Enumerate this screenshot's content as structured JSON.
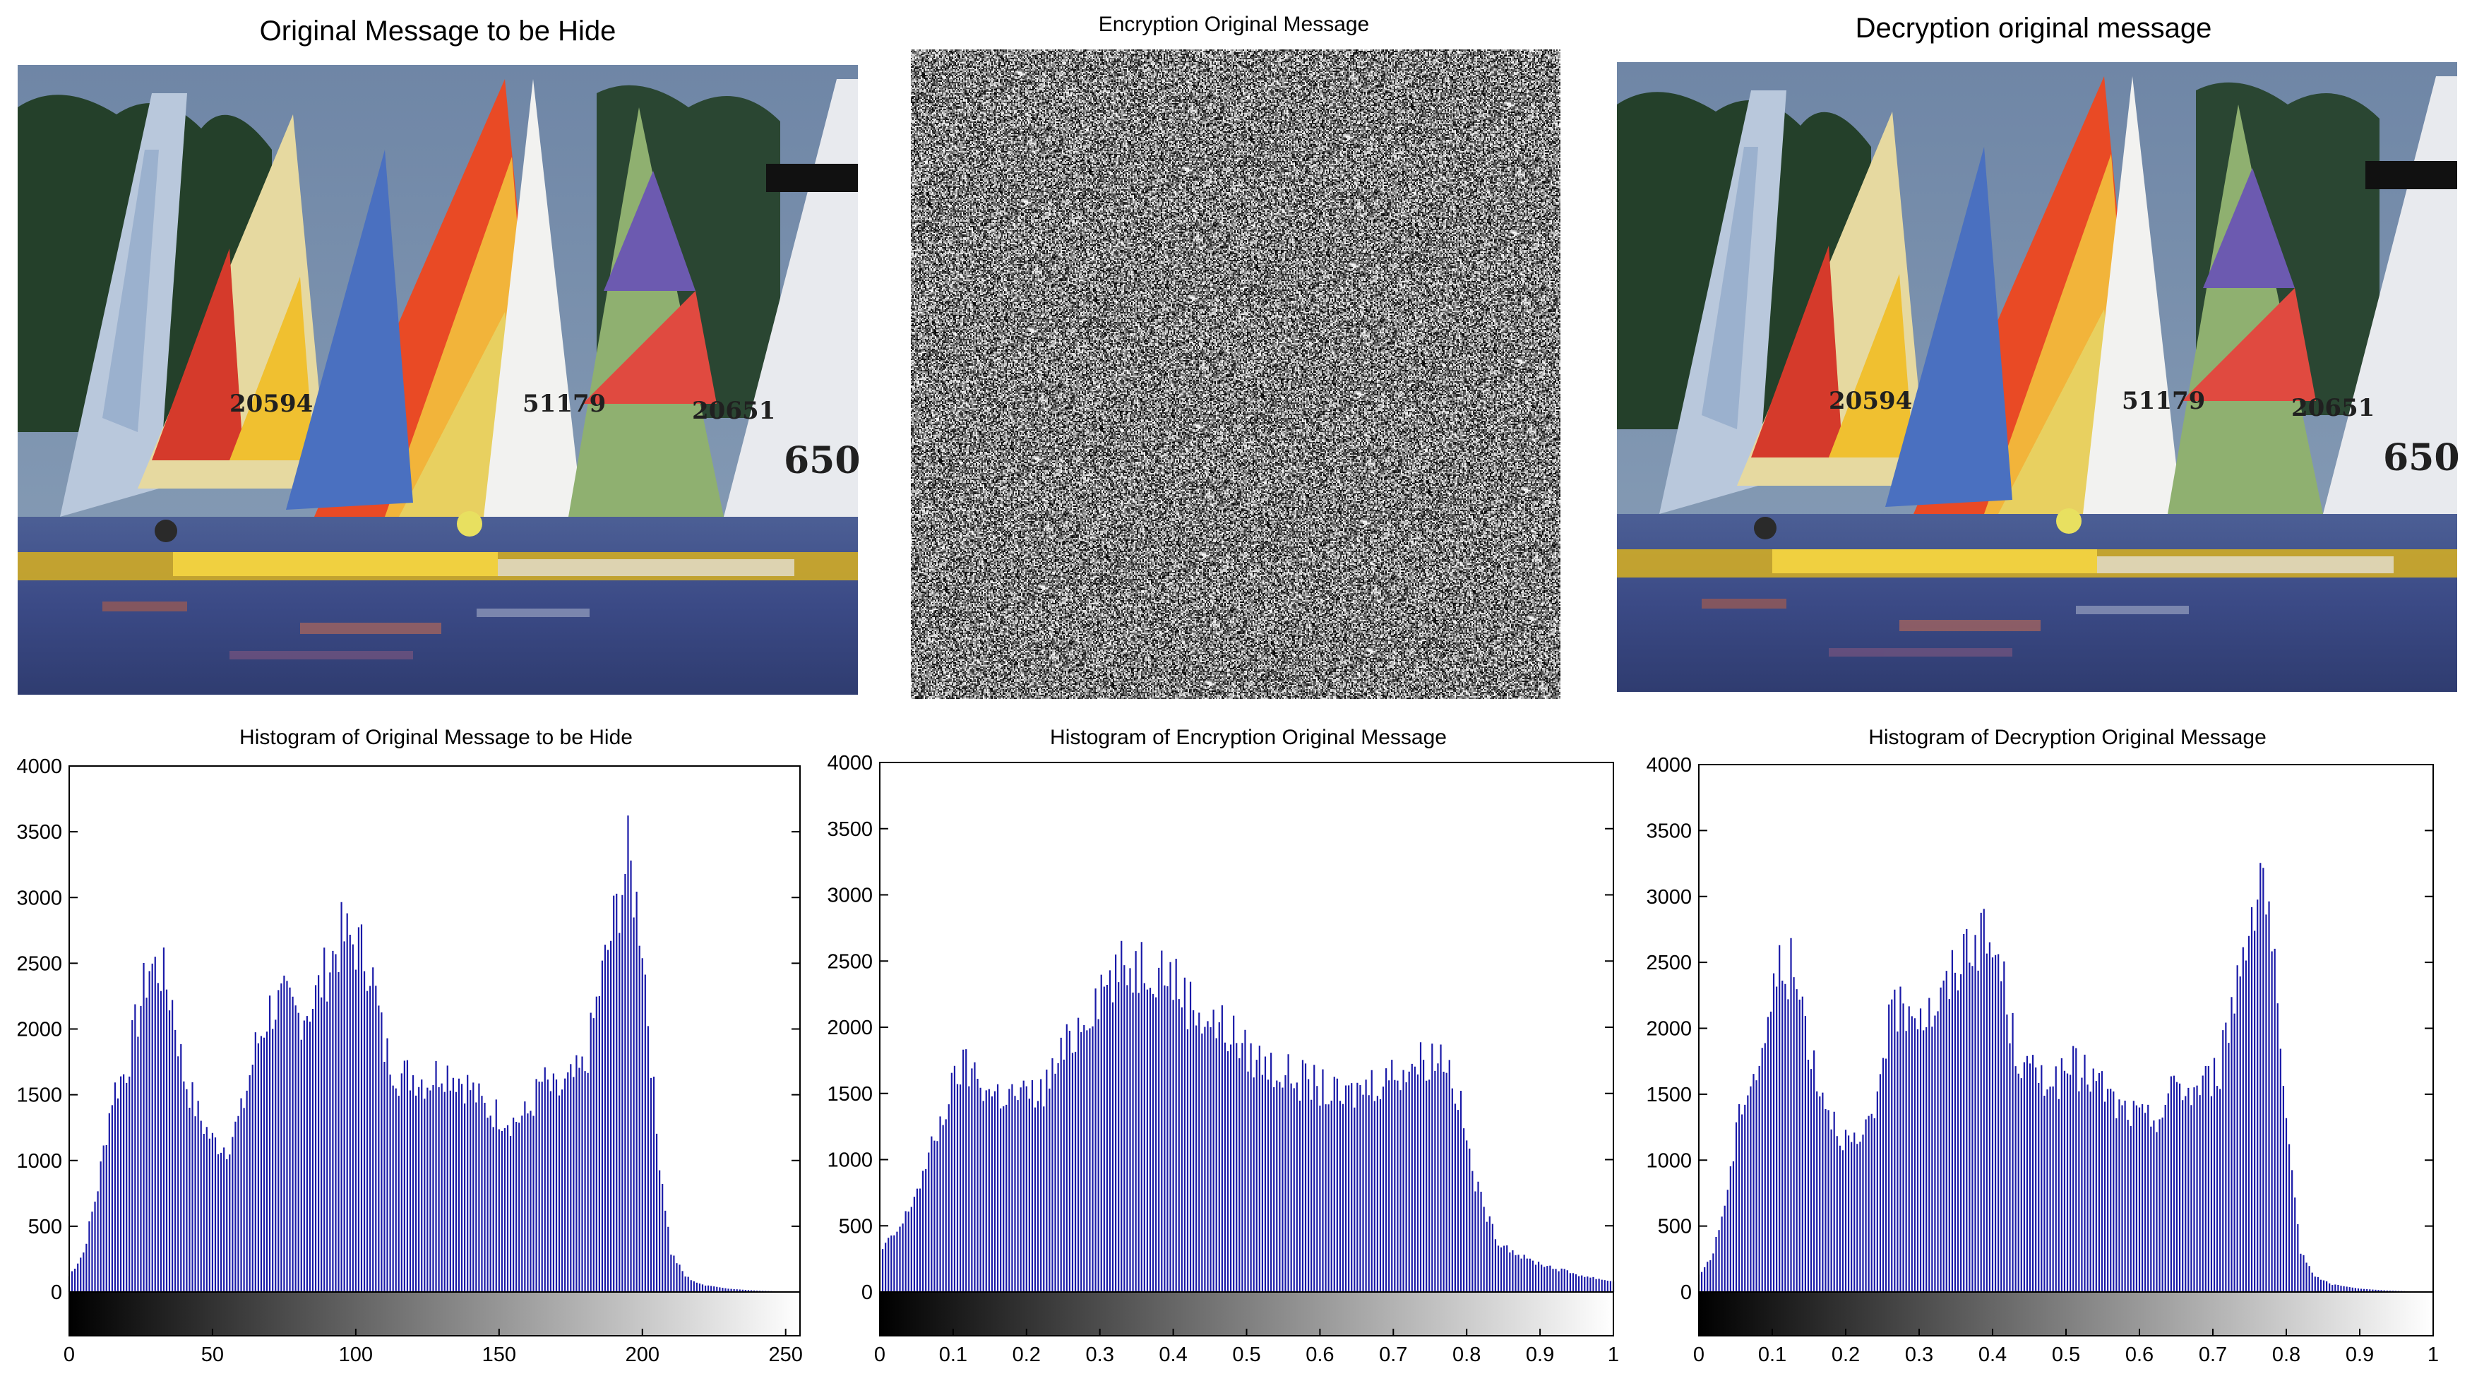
{
  "images": [
    {
      "title": "Original Message to be Hide",
      "sail_numbers": [
        "20594",
        "51179",
        "20651",
        "650"
      ]
    },
    {
      "title": "Encryption Original Message"
    },
    {
      "title": "Decryption original message",
      "sail_numbers": [
        "20594",
        "51179",
        "20651",
        "650"
      ]
    }
  ],
  "chart_data": [
    {
      "type": "bar",
      "title": "Histogram of Original Message to be Hide",
      "xlabel": "",
      "ylabel": "",
      "xlim": [
        0,
        255
      ],
      "ylim": [
        0,
        4000
      ],
      "xticks": [
        "0",
        "50",
        "100",
        "150",
        "200",
        "250"
      ],
      "yticks": [
        "0",
        "500",
        "1000",
        "1500",
        "2000",
        "2500",
        "3000",
        "3500",
        "4000"
      ],
      "bar_color": "#1a1aa8",
      "colorbar": "grayscale",
      "grid": false,
      "points": [
        [
          0,
          120
        ],
        [
          5,
          300
        ],
        [
          10,
          800
        ],
        [
          15,
          1500
        ],
        [
          20,
          1700
        ],
        [
          25,
          2200
        ],
        [
          28,
          2480
        ],
        [
          32,
          2450
        ],
        [
          36,
          2200
        ],
        [
          40,
          1650
        ],
        [
          45,
          1350
        ],
        [
          50,
          1150
        ],
        [
          55,
          1100
        ],
        [
          60,
          1350
        ],
        [
          65,
          1850
        ],
        [
          70,
          2150
        ],
        [
          75,
          2200
        ],
        [
          80,
          2100
        ],
        [
          85,
          2200
        ],
        [
          90,
          2450
        ],
        [
          95,
          2700
        ],
        [
          100,
          2650
        ],
        [
          105,
          2500
        ],
        [
          110,
          1850
        ],
        [
          115,
          1650
        ],
        [
          120,
          1650
        ],
        [
          125,
          1600
        ],
        [
          130,
          1700
        ],
        [
          135,
          1650
        ],
        [
          140,
          1550
        ],
        [
          145,
          1400
        ],
        [
          150,
          1350
        ],
        [
          155,
          1300
        ],
        [
          160,
          1350
        ],
        [
          165,
          1600
        ],
        [
          170,
          1500
        ],
        [
          175,
          1600
        ],
        [
          180,
          1700
        ],
        [
          185,
          2300
        ],
        [
          190,
          2800
        ],
        [
          195,
          3300
        ],
        [
          200,
          2700
        ],
        [
          205,
          1200
        ],
        [
          210,
          300
        ],
        [
          215,
          120
        ],
        [
          220,
          60
        ],
        [
          230,
          25
        ],
        [
          240,
          10
        ],
        [
          255,
          0
        ]
      ]
    },
    {
      "type": "bar",
      "title": "Histogram of Encryption Original Message",
      "xlabel": "",
      "ylabel": "",
      "xlim": [
        0,
        1
      ],
      "ylim": [
        0,
        4000
      ],
      "xticks": [
        "0",
        "0.1",
        "0.2",
        "0.3",
        "0.4",
        "0.5",
        "0.6",
        "0.7",
        "0.8",
        "0.9",
        "1"
      ],
      "yticks": [
        "0",
        "500",
        "1000",
        "1500",
        "2000",
        "2500",
        "3000",
        "3500",
        "4000"
      ],
      "bar_color": "#1a1aa8",
      "colorbar": "grayscale",
      "grid": false,
      "points": [
        [
          0,
          300
        ],
        [
          0.03,
          500
        ],
        [
          0.06,
          900
        ],
        [
          0.09,
          1400
        ],
        [
          0.11,
          1700
        ],
        [
          0.13,
          1650
        ],
        [
          0.15,
          1500
        ],
        [
          0.2,
          1480
        ],
        [
          0.22,
          1500
        ],
        [
          0.25,
          1800
        ],
        [
          0.28,
          2100
        ],
        [
          0.3,
          2300
        ],
        [
          0.33,
          2420
        ],
        [
          0.36,
          2500
        ],
        [
          0.39,
          2450
        ],
        [
          0.42,
          2200
        ],
        [
          0.45,
          2050
        ],
        [
          0.48,
          1950
        ],
        [
          0.5,
          1800
        ],
        [
          0.55,
          1650
        ],
        [
          0.6,
          1550
        ],
        [
          0.63,
          1450
        ],
        [
          0.66,
          1550
        ],
        [
          0.7,
          1650
        ],
        [
          0.74,
          1750
        ],
        [
          0.77,
          1800
        ],
        [
          0.79,
          1450
        ],
        [
          0.81,
          850
        ],
        [
          0.84,
          400
        ],
        [
          0.88,
          250
        ],
        [
          0.92,
          180
        ],
        [
          0.96,
          120
        ],
        [
          1.0,
          80
        ]
      ]
    },
    {
      "type": "bar",
      "title": "Histogram of Decryption Original Message",
      "xlabel": "",
      "ylabel": "",
      "xlim": [
        0,
        1
      ],
      "ylim": [
        0,
        4000
      ],
      "xticks": [
        "0",
        "0.1",
        "0.2",
        "0.3",
        "0.4",
        "0.5",
        "0.6",
        "0.7",
        "0.8",
        "0.9",
        "1"
      ],
      "yticks": [
        "0",
        "500",
        "1000",
        "1500",
        "2000",
        "2500",
        "3000",
        "3500",
        "4000"
      ],
      "bar_color": "#1a1aa8",
      "colorbar": "grayscale",
      "grid": false,
      "points": [
        [
          0,
          120
        ],
        [
          0.02,
          300
        ],
        [
          0.04,
          800
        ],
        [
          0.06,
          1500
        ],
        [
          0.08,
          1700
        ],
        [
          0.1,
          2200
        ],
        [
          0.11,
          2480
        ],
        [
          0.125,
          2450
        ],
        [
          0.14,
          2200
        ],
        [
          0.16,
          1650
        ],
        [
          0.18,
          1350
        ],
        [
          0.2,
          1150
        ],
        [
          0.22,
          1100
        ],
        [
          0.24,
          1350
        ],
        [
          0.25,
          1850
        ],
        [
          0.27,
          2150
        ],
        [
          0.29,
          2200
        ],
        [
          0.31,
          2100
        ],
        [
          0.33,
          2200
        ],
        [
          0.35,
          2450
        ],
        [
          0.37,
          2700
        ],
        [
          0.39,
          2650
        ],
        [
          0.41,
          2500
        ],
        [
          0.43,
          1850
        ],
        [
          0.45,
          1650
        ],
        [
          0.47,
          1650
        ],
        [
          0.49,
          1600
        ],
        [
          0.51,
          1700
        ],
        [
          0.53,
          1650
        ],
        [
          0.55,
          1550
        ],
        [
          0.57,
          1400
        ],
        [
          0.59,
          1350
        ],
        [
          0.61,
          1300
        ],
        [
          0.63,
          1350
        ],
        [
          0.65,
          1600
        ],
        [
          0.67,
          1500
        ],
        [
          0.69,
          1600
        ],
        [
          0.71,
          1700
        ],
        [
          0.73,
          2300
        ],
        [
          0.75,
          2800
        ],
        [
          0.765,
          3300
        ],
        [
          0.78,
          2700
        ],
        [
          0.8,
          1200
        ],
        [
          0.82,
          300
        ],
        [
          0.84,
          120
        ],
        [
          0.86,
          60
        ],
        [
          0.9,
          25
        ],
        [
          0.94,
          10
        ],
        [
          1.0,
          0
        ]
      ]
    }
  ]
}
